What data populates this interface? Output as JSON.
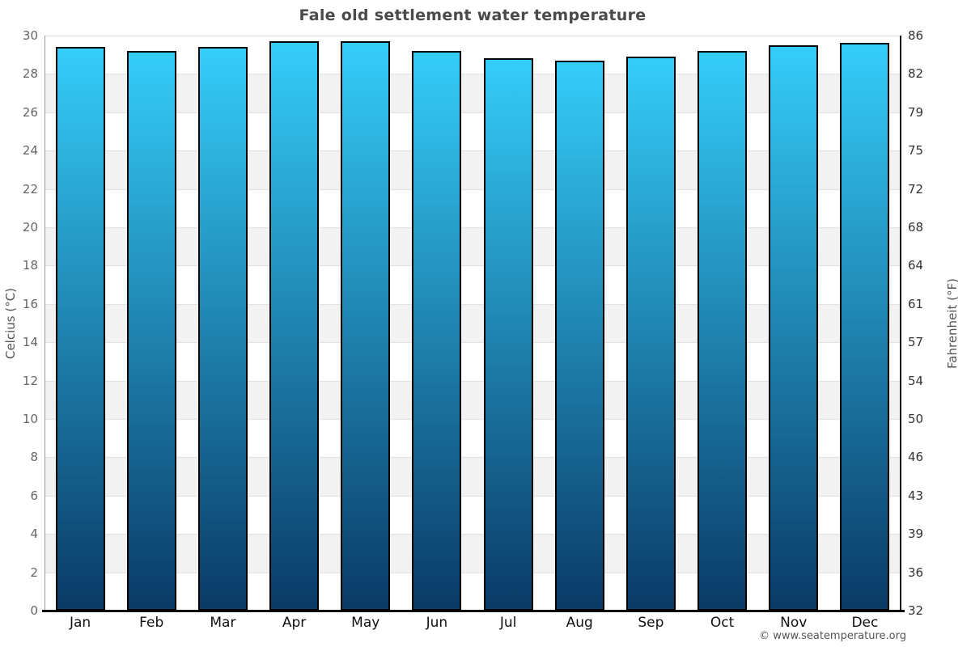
{
  "chart_data": {
    "type": "bar",
    "title": "Fale old settlement water temperature",
    "categories": [
      "Jan",
      "Feb",
      "Mar",
      "Apr",
      "May",
      "Jun",
      "Jul",
      "Aug",
      "Sep",
      "Oct",
      "Nov",
      "Dec"
    ],
    "values": [
      29.4,
      29.2,
      29.4,
      29.7,
      29.7,
      29.2,
      28.8,
      28.7,
      28.9,
      29.2,
      29.5,
      29.6
    ],
    "unit": "°C",
    "ylabel_left": "Celcius (°C)",
    "ylabel_right": "Fahrenheit (°F)",
    "ylim": [
      0,
      30
    ],
    "yticks_celsius": [
      0,
      2,
      4,
      6,
      8,
      10,
      12,
      14,
      16,
      18,
      20,
      22,
      24,
      26,
      28,
      30
    ],
    "yticks_fahrenheit": [
      32,
      36,
      39,
      43,
      46,
      50,
      54,
      57,
      61,
      64,
      68,
      72,
      75,
      79,
      82,
      86
    ],
    "gray_band_lower_edges": [
      2,
      6,
      10,
      14,
      18,
      22,
      26
    ],
    "grid": "alternating-horizontal-bands",
    "legend": "none",
    "colors": {
      "bar_gradient_top": "#35cdf9",
      "bar_gradient_bottom": "#0a3a66",
      "bar_border": "#000000",
      "band_gray": "#f2f2f2",
      "gridline": "#e2e2e2",
      "axis_left_line": "#999999",
      "axis_right_line": "#1a1a1a",
      "axis_bottom_line": "#000000",
      "title_text": "#4a4a4a",
      "tick_text_left": "#666666",
      "tick_text_right": "#333333",
      "month_text": "#111111"
    }
  },
  "footer": {
    "copyright": "© www.seatemperature.org"
  }
}
